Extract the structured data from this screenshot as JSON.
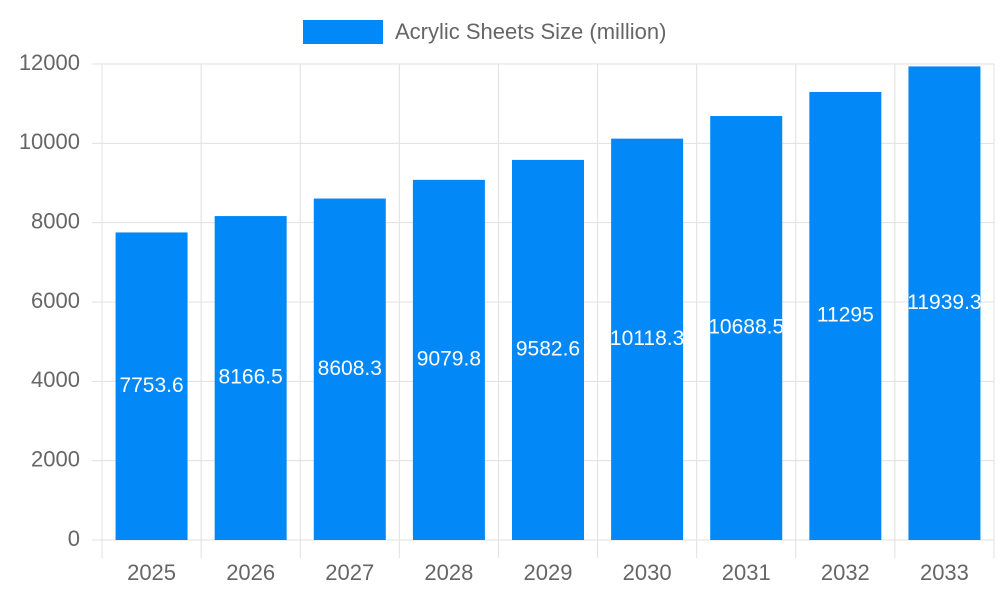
{
  "chart_data": {
    "type": "bar",
    "categories": [
      "2025",
      "2026",
      "2027",
      "2028",
      "2029",
      "2030",
      "2031",
      "2032",
      "2033"
    ],
    "series": [
      {
        "name": "Acrylic Sheets Size (million)",
        "color": "#0388f7",
        "values": [
          7753.6,
          8166.5,
          8608.3,
          9079.8,
          9582.6,
          10118.3,
          10688.5,
          11295,
          11939.3
        ]
      }
    ],
    "ylim": [
      0,
      12000
    ],
    "yticks": [
      0,
      2000,
      4000,
      6000,
      8000,
      10000,
      12000
    ],
    "grid": true,
    "legend": "top"
  }
}
